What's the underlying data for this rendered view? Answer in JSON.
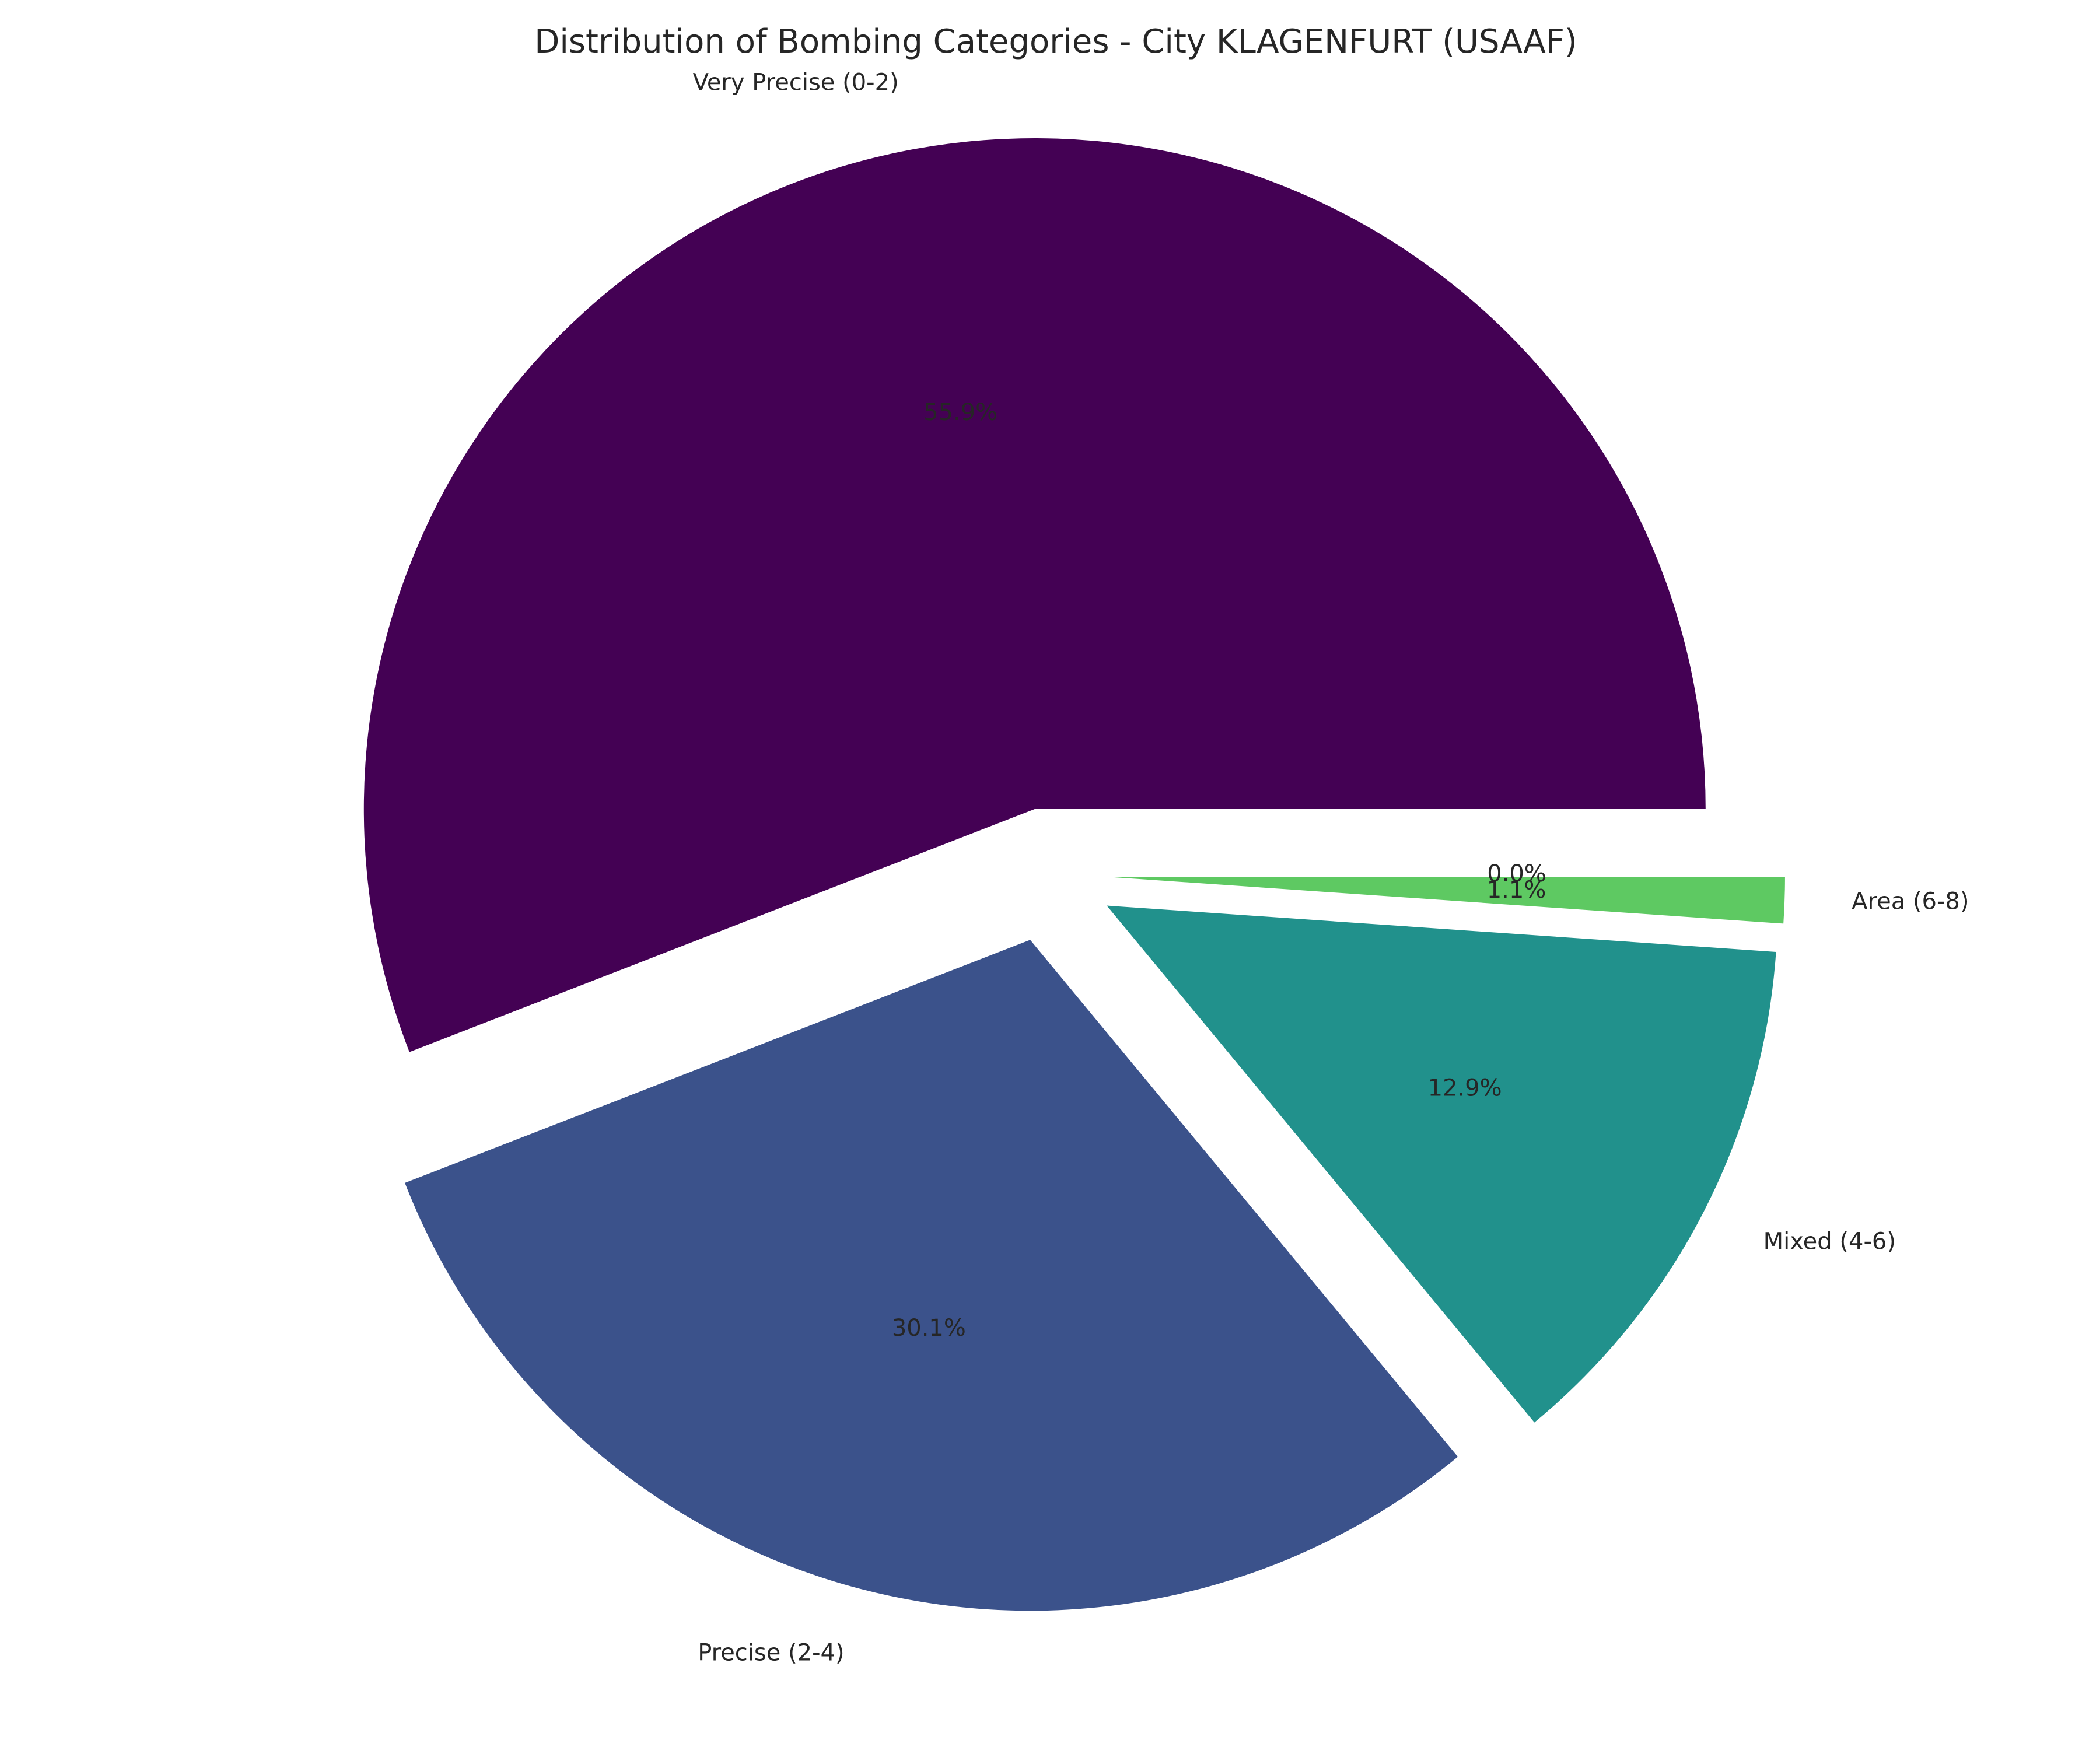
{
  "chart_data": {
    "type": "pie",
    "title": "Distribution of Bombing Categories - City KLAGENFURT (USAAF)",
    "start_angle": 0,
    "direction": "counterclockwise",
    "explode": 0.1,
    "slices": [
      {
        "label": "Very Precise (0-2)",
        "pct_label": "55.9%",
        "value": 55.9,
        "color": "#440154"
      },
      {
        "label": "Precise (2-4)",
        "pct_label": "30.1%",
        "value": 30.1,
        "color": "#3b528b"
      },
      {
        "label": "Mixed (4-6)",
        "pct_label": "12.9%",
        "value": 12.9,
        "color": "#21918c"
      },
      {
        "label": "Area (6-8)",
        "pct_label": "1.1%",
        "value": 1.1,
        "color": "#5ec962"
      },
      {
        "label": "",
        "pct_label": "0.0%",
        "value": 0.0,
        "color": "#fde725"
      }
    ]
  }
}
